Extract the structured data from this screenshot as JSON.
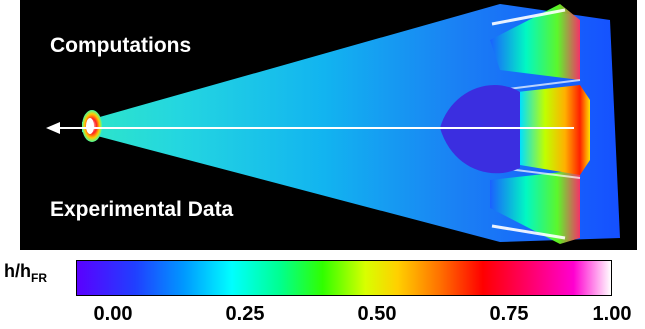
{
  "panel": {
    "top_label": "Computations",
    "bottom_label": "Experimental Data",
    "background_color": "#000000"
  },
  "colorbar": {
    "title_main": "h/h",
    "title_sub": "FR",
    "ticks": [
      "0.00",
      "0.25",
      "0.50",
      "0.75",
      "1.00"
    ],
    "colormap": [
      "#5a00ff",
      "#0098ff",
      "#00ffff",
      "#30ff00",
      "#ffd000",
      "#ff0000",
      "#ff00d0",
      "#ffffff"
    ]
  }
}
